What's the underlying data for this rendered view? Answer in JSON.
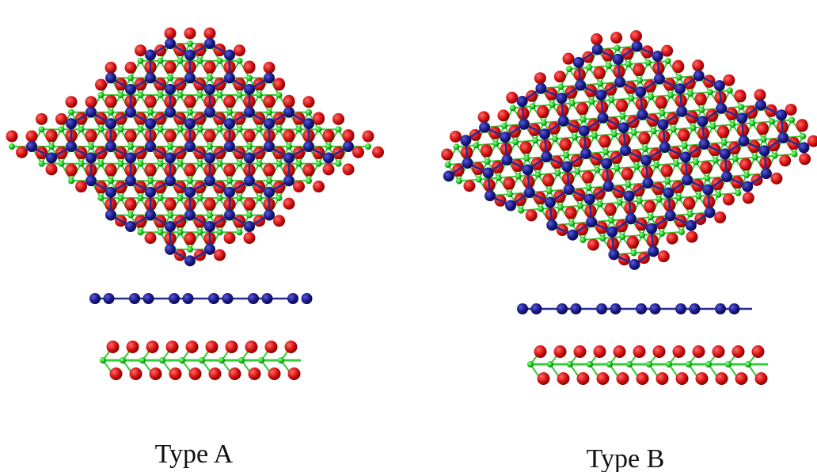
{
  "panels": [
    {
      "label": "Type A"
    },
    {
      "label": "Type B"
    }
  ]
}
